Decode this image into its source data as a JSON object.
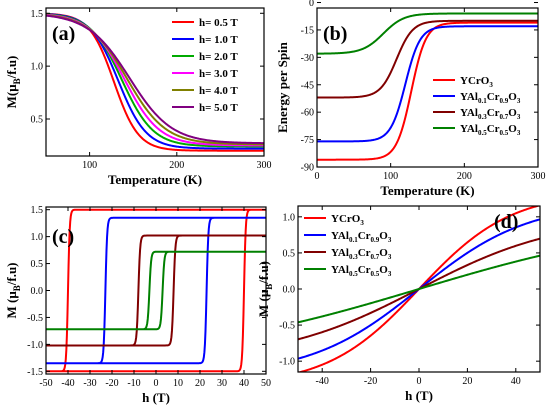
{
  "chart_data": [
    {
      "id": "a",
      "type": "line",
      "panel_label": "(a)",
      "xlabel": "Temperature (K)",
      "ylabel_parts": [
        "M(",
        "μ",
        "B",
        "/f.u)"
      ],
      "xlim": [
        50,
        300
      ],
      "ylim": [
        0.15,
        1.55
      ],
      "xticks": [
        100,
        200,
        300
      ],
      "yticks": [
        0.5,
        1.0,
        1.5
      ],
      "ytick_labels": [
        "0.5",
        "1.0",
        "1.5"
      ],
      "legend_placement": "top-right",
      "legend": [
        {
          "label": "h= 0.5 T",
          "color": "#ff0000"
        },
        {
          "label": "h= 1.0 T",
          "color": "#0000ff"
        },
        {
          "label": "h= 2.0 T",
          "color": "#00aa00"
        },
        {
          "label": "h= 3.0 T",
          "color": "#ff00ff"
        },
        {
          "label": "h= 4.0 T",
          "color": "#808000"
        },
        {
          "label": "h= 5.0 T",
          "color": "#800080"
        }
      ],
      "series": [
        {
          "name": "h= 0.5 T",
          "color": "#ff0000",
          "tc": 128,
          "w": 14,
          "tail": 0.2
        },
        {
          "name": "h= 1.0 T",
          "color": "#0000ff",
          "tc": 133,
          "w": 16,
          "tail": 0.22
        },
        {
          "name": "h= 2.0 T",
          "color": "#00aa00",
          "tc": 137,
          "w": 18,
          "tail": 0.24
        },
        {
          "name": "h= 3.0 T",
          "color": "#ff00ff",
          "tc": 140,
          "w": 20,
          "tail": 0.25
        },
        {
          "name": "h= 4.0 T",
          "color": "#808000",
          "tc": 143,
          "w": 22,
          "tail": 0.26
        },
        {
          "name": "h= 5.0 T",
          "color": "#800080",
          "tc": 146,
          "w": 24,
          "tail": 0.27
        }
      ]
    },
    {
      "id": "b",
      "type": "line",
      "panel_label": "(b)",
      "xlabel": "Temperature (K)",
      "ylabel": "Energy per Spin",
      "xlim": [
        0,
        300
      ],
      "ylim": [
        -90,
        -3
      ],
      "xticks": [
        0,
        100,
        200,
        300
      ],
      "yticks": [
        -90,
        -75,
        -60,
        -45,
        -30,
        -15,
        0
      ],
      "ytick_labels": [
        "-90",
        "-75",
        "-60",
        "-45",
        "-30",
        "-15",
        "0"
      ],
      "legend_placement": "right",
      "legend": [
        {
          "parts": [
            [
              "YCrO",
              ""
            ],
            [
              "3",
              "sub"
            ]
          ],
          "color": "#ff0000"
        },
        {
          "parts": [
            [
              "YAl",
              ""
            ],
            [
              "0.1",
              "sub"
            ],
            [
              "Cr",
              ""
            ],
            [
              "0.9",
              "sub"
            ],
            [
              "O",
              ""
            ],
            [
              "3",
              "sub"
            ]
          ],
          "color": "#0000ff"
        },
        {
          "parts": [
            [
              "YAl",
              ""
            ],
            [
              "0.3",
              "sub"
            ],
            [
              "Cr",
              ""
            ],
            [
              "0.7",
              "sub"
            ],
            [
              "O",
              ""
            ],
            [
              "3",
              "sub"
            ]
          ],
          "color": "#800000"
        },
        {
          "parts": [
            [
              "YAl",
              ""
            ],
            [
              "0.5",
              "sub"
            ],
            [
              "Cr",
              ""
            ],
            [
              "0.5",
              "sub"
            ],
            [
              "O",
              ""
            ],
            [
              "3",
              "sub"
            ]
          ],
          "color": "#008000"
        }
      ],
      "series": [
        {
          "name": "YCrO3",
          "color": "#ff0000",
          "low": -86,
          "high": -11,
          "tc": 128,
          "w": 10
        },
        {
          "name": "YAl0.1Cr0.9O3",
          "color": "#0000ff",
          "low": -76,
          "high": -13,
          "tc": 120,
          "w": 10
        },
        {
          "name": "YAl0.3Cr0.7O3",
          "color": "#800000",
          "low": -52,
          "high": -10,
          "tc": 108,
          "w": 11
        },
        {
          "name": "YAl0.5Cr0.5O3",
          "color": "#008000",
          "low": -28,
          "high": -6,
          "tc": 90,
          "w": 14
        }
      ]
    },
    {
      "id": "c",
      "type": "line",
      "panel_label": "(c)",
      "xlabel": "h (T)",
      "ylabel_parts": [
        "M (",
        "μ",
        "B",
        "/f.u)"
      ],
      "xlim": [
        -50,
        50
      ],
      "ylim": [
        -1.55,
        1.55
      ],
      "xticks": [
        -50,
        -40,
        -30,
        -20,
        -10,
        0,
        10,
        20,
        30,
        40,
        50
      ],
      "yticks": [
        -1.5,
        -1.0,
        -0.5,
        0.0,
        0.5,
        1.0,
        1.5
      ],
      "ytick_labels": [
        "-1.5",
        "-1.0",
        "-0.5",
        "0.0",
        "0.5",
        "1.0",
        "1.5"
      ],
      "series": [
        {
          "name": "YCrO3",
          "color": "#ff0000",
          "ms": 1.5,
          "hc": 40,
          "w": 0.8
        },
        {
          "name": "YAl0.1Cr0.9O3",
          "color": "#0000ff",
          "ms": 1.35,
          "hc": 23,
          "w": 0.8
        },
        {
          "name": "YAl0.3Cr0.7O3",
          "color": "#800000",
          "ms": 1.02,
          "hc": 8,
          "w": 0.8
        },
        {
          "name": "YAl0.5Cr0.5O3",
          "color": "#008000",
          "ms": 0.72,
          "hc": 3,
          "w": 0.8
        }
      ]
    },
    {
      "id": "d",
      "type": "line",
      "panel_label": "(d)",
      "xlabel": "h (T)",
      "ylabel_parts": [
        "M (",
        "μ",
        "B",
        "/f.u)"
      ],
      "xlim": [
        -50,
        50
      ],
      "ylim": [
        -1.15,
        1.15
      ],
      "xticks": [
        -40,
        -20,
        0,
        20,
        40
      ],
      "yticks": [
        -1.0,
        -0.5,
        0.0,
        0.5,
        1.0
      ],
      "ytick_labels": [
        "-1.0",
        "-0.5",
        "0.0",
        "0.5",
        "1.0"
      ],
      "legend_placement": "top-left",
      "legend": [
        {
          "parts": [
            [
              "YCrO",
              ""
            ],
            [
              "3",
              "sub"
            ]
          ],
          "color": "#ff0000"
        },
        {
          "parts": [
            [
              "YAl",
              ""
            ],
            [
              "0.1",
              "sub"
            ],
            [
              "Cr",
              ""
            ],
            [
              "0.9",
              "sub"
            ],
            [
              "O",
              ""
            ],
            [
              "3",
              "sub"
            ]
          ],
          "color": "#0000ff"
        },
        {
          "parts": [
            [
              "YAl",
              ""
            ],
            [
              "0.3",
              "sub"
            ],
            [
              "Cr",
              ""
            ],
            [
              "0.7",
              "sub"
            ],
            [
              "O",
              ""
            ],
            [
              "3",
              "sub"
            ]
          ],
          "color": "#800000"
        },
        {
          "parts": [
            [
              "YAl",
              ""
            ],
            [
              "0.5",
              "sub"
            ],
            [
              "Cr",
              ""
            ],
            [
              "0.5",
              "sub"
            ],
            [
              "O",
              ""
            ],
            [
              "3",
              "sub"
            ]
          ],
          "color": "#008000"
        }
      ],
      "series": [
        {
          "name": "YCrO3",
          "color": "#ff0000",
          "amp": 1.34,
          "scale": 38
        },
        {
          "name": "YAl0.1Cr0.9O3",
          "color": "#0000ff",
          "amp": 1.2,
          "scale": 45
        },
        {
          "name": "YAl0.3Cr0.7O3",
          "color": "#800000",
          "amp": 1.0,
          "scale": 58
        },
        {
          "name": "YAl0.5Cr0.5O3",
          "color": "#008000",
          "amp": 1.0,
          "scale": 100
        }
      ]
    }
  ]
}
